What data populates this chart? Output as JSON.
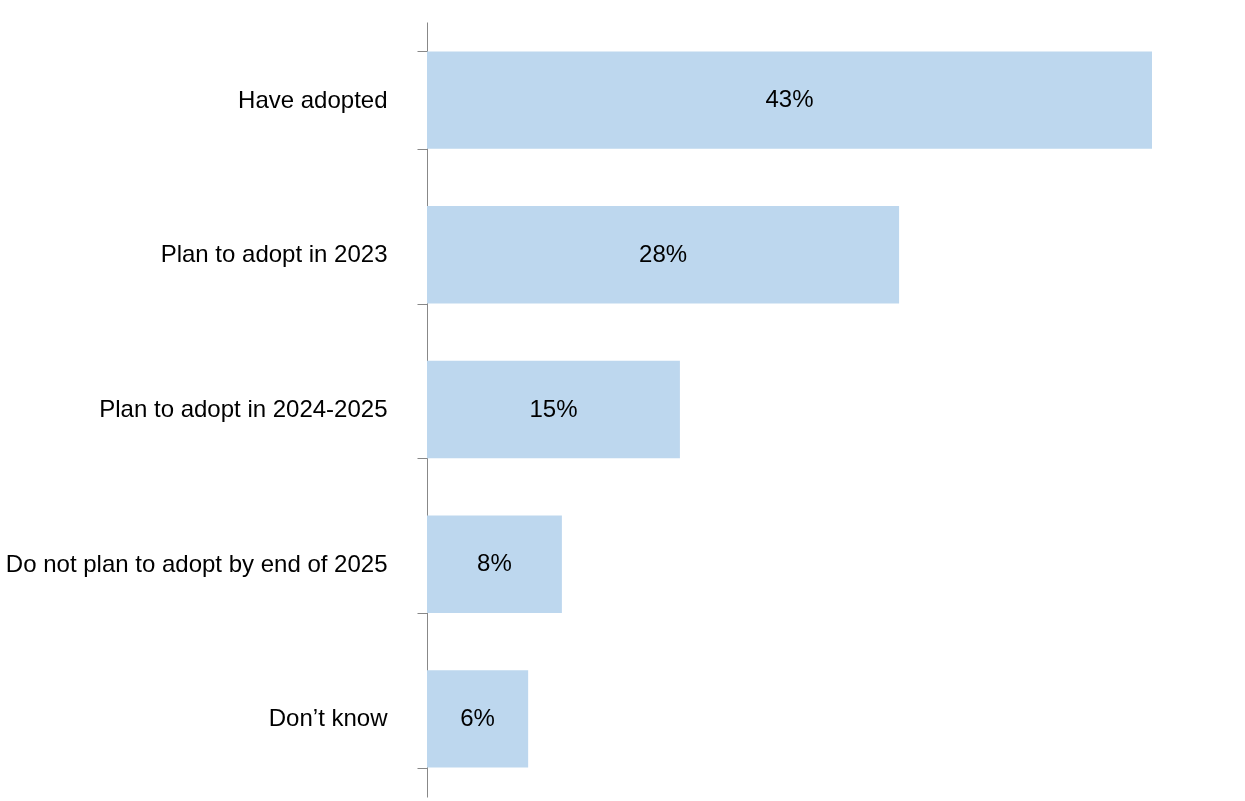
{
  "chart_data": {
    "type": "bar",
    "orientation": "horizontal",
    "categories": [
      "Have adopted",
      "Plan to adopt in 2023",
      "Plan to adopt in 2024-2025",
      "Do not plan to adopt by end of 2025",
      "Don’t know"
    ],
    "values": [
      43,
      28,
      15,
      8,
      6
    ],
    "value_labels": [
      "43%",
      "28%",
      "15%",
      "8%",
      "6%"
    ],
    "color": "#bdd7ee",
    "grid": false
  }
}
